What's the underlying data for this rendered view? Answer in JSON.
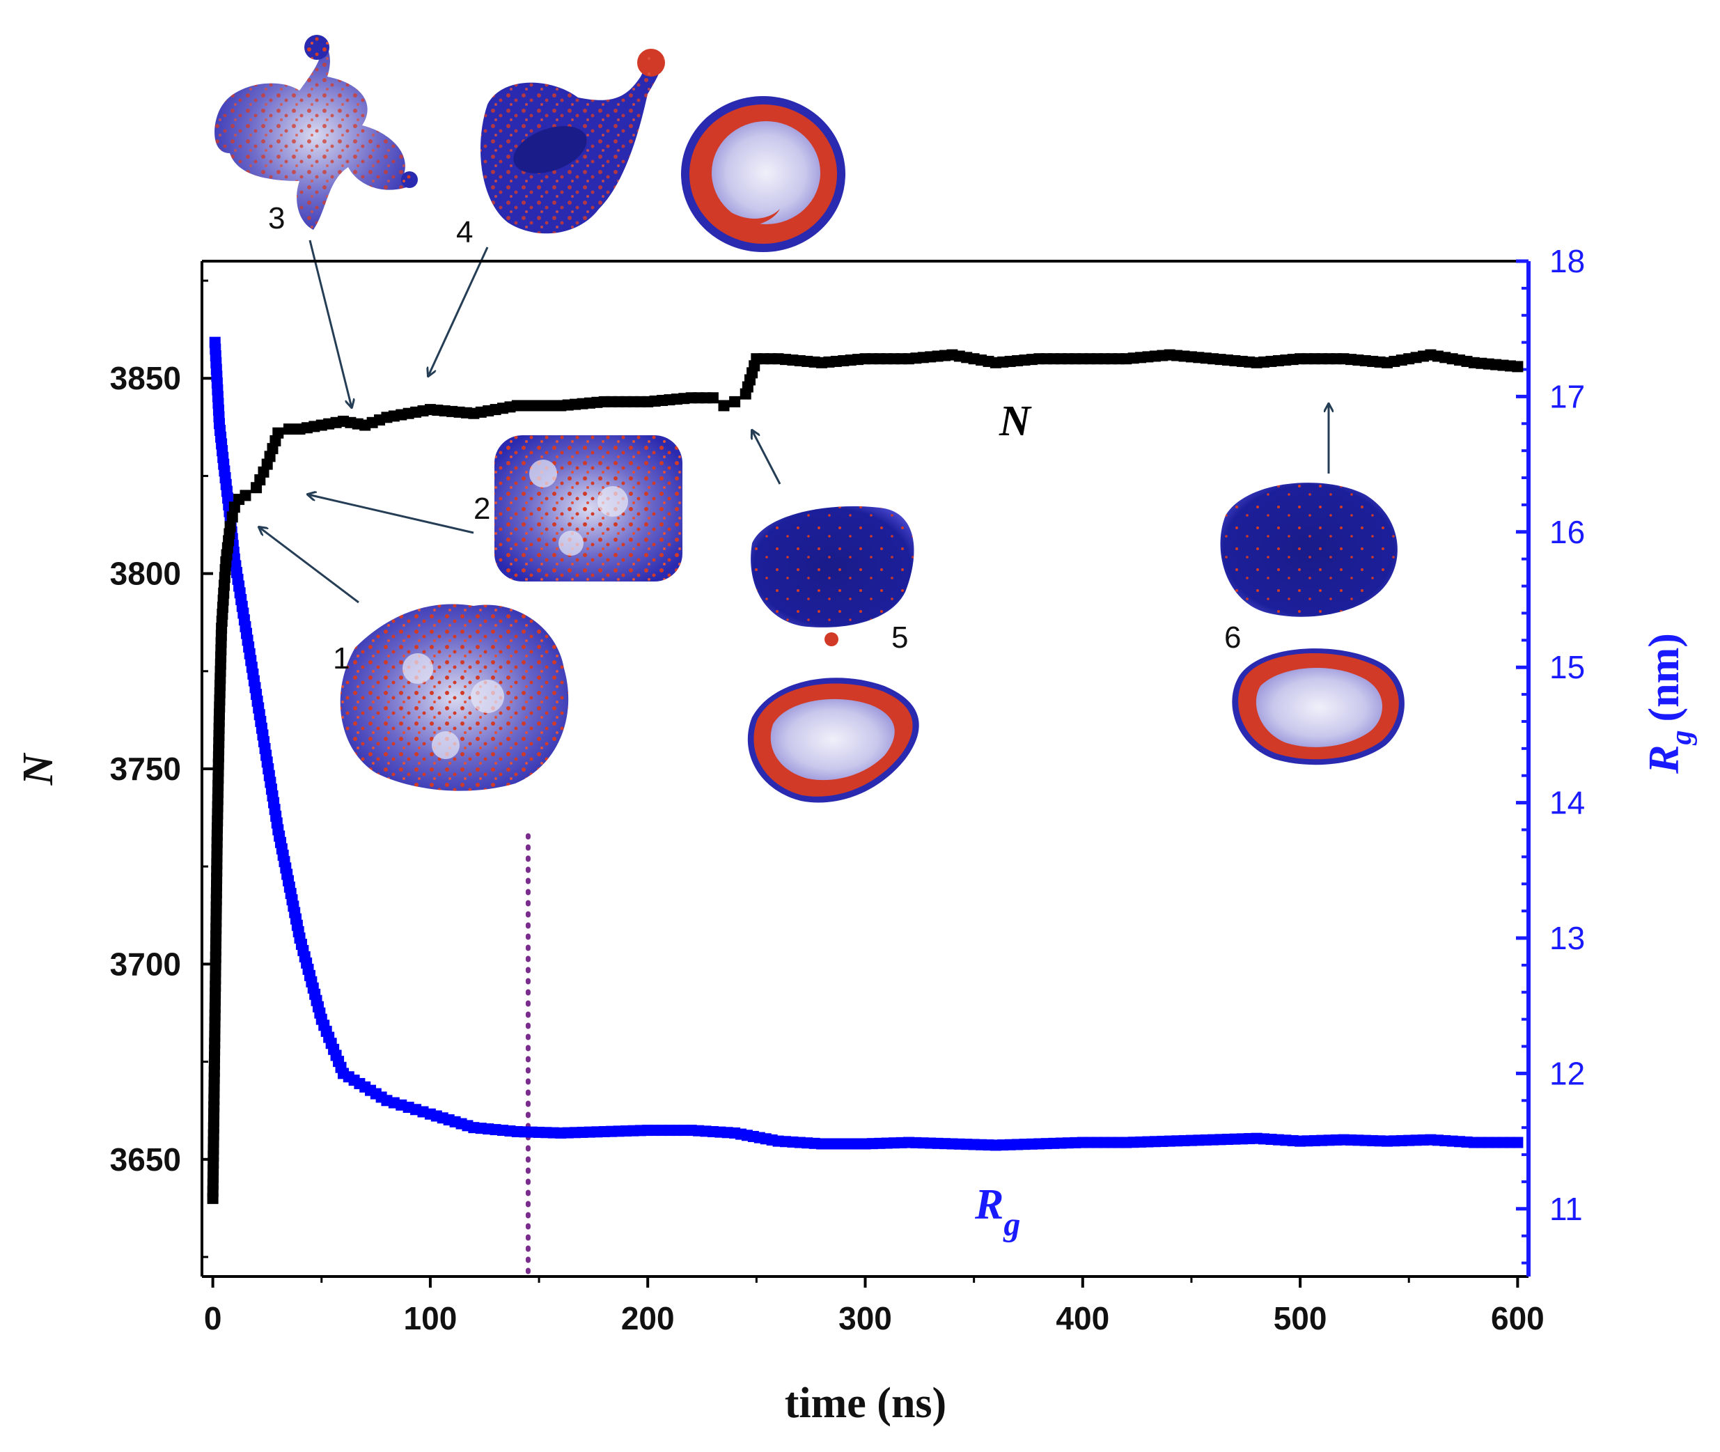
{
  "colors": {
    "n_series": "#000000",
    "rg_series": "#0000ff",
    "right_axis": "#1a1aff",
    "vertical_marker": "#7a2c8c",
    "arrow": "#263e55",
    "snapshot_blue": "#2a2ab0",
    "snapshot_red": "#d23a28"
  },
  "chart_data": {
    "type": "line",
    "xlabel": "time (ns)",
    "ylabel_left": "N",
    "ylabel_right_main": "R",
    "ylabel_right_sub": "g",
    "ylabel_right_unit": "(nm)",
    "xlim": [
      -5,
      605
    ],
    "ylim_left": [
      3620,
      3880
    ],
    "ylim_right": [
      10.5,
      18
    ],
    "x_ticks": [
      0,
      100,
      200,
      300,
      400,
      500,
      600
    ],
    "y_left_ticks": [
      3650,
      3700,
      3750,
      3800,
      3850
    ],
    "y_right_ticks": [
      11,
      12,
      13,
      14,
      15,
      16,
      17,
      18
    ],
    "vertical_marker_x": 145,
    "series": [
      {
        "name": "N",
        "axis": "left",
        "x": [
          0,
          1,
          2,
          3,
          4,
          5,
          6,
          8,
          10,
          12,
          15,
          20,
          25,
          30,
          35,
          40,
          50,
          60,
          70,
          80,
          90,
          100,
          120,
          140,
          160,
          180,
          200,
          220,
          230,
          235,
          240,
          245,
          250,
          260,
          280,
          300,
          320,
          340,
          360,
          380,
          400,
          420,
          440,
          460,
          480,
          500,
          520,
          540,
          560,
          580,
          600
        ],
        "y": [
          3640,
          3687,
          3733,
          3764,
          3786,
          3795,
          3803,
          3812,
          3817,
          3819,
          3820,
          3822,
          3828,
          3836,
          3837,
          3837,
          3838,
          3839,
          3838,
          3840,
          3841,
          3842,
          3841,
          3843,
          3843,
          3844,
          3844,
          3845,
          3845,
          3843,
          3844,
          3846,
          3855,
          3855,
          3854,
          3855,
          3855,
          3856,
          3854,
          3855,
          3855,
          3855,
          3856,
          3855,
          3854,
          3855,
          3855,
          3854,
          3856,
          3854,
          3853
        ]
      },
      {
        "name": "R_g",
        "axis": "right",
        "x": [
          1,
          2,
          3,
          5,
          8,
          10,
          15,
          20,
          25,
          30,
          40,
          50,
          60,
          70,
          80,
          90,
          100,
          120,
          140,
          160,
          180,
          200,
          220,
          240,
          260,
          280,
          300,
          320,
          340,
          360,
          380,
          400,
          420,
          440,
          460,
          480,
          500,
          520,
          540,
          560,
          580,
          600
        ],
        "y": [
          17.4,
          17.1,
          16.8,
          16.5,
          16.1,
          15.8,
          15.3,
          14.8,
          14.3,
          13.8,
          13.0,
          12.4,
          12.0,
          11.9,
          11.8,
          11.75,
          11.7,
          11.6,
          11.57,
          11.56,
          11.57,
          11.58,
          11.58,
          11.56,
          11.5,
          11.48,
          11.48,
          11.49,
          11.48,
          11.47,
          11.48,
          11.49,
          11.49,
          11.5,
          11.51,
          11.52,
          11.5,
          11.51,
          11.5,
          11.51,
          11.49,
          11.49
        ]
      }
    ],
    "annotations": {
      "n_curve_label": "N",
      "rg_curve_label_main": "R",
      "rg_curve_label_sub": "g"
    }
  },
  "snapshots": [
    {
      "label": "1",
      "shape": "porous-cluster"
    },
    {
      "label": "2",
      "shape": "porous-cluster"
    },
    {
      "label": "3",
      "shape": "branched-aggregate"
    },
    {
      "label": "4",
      "shape": "pear-shaped-vesicle"
    },
    {
      "label": "",
      "shape": "vesicle-cross-section"
    },
    {
      "label": "5",
      "shape": "closed-vesicle"
    },
    {
      "label": "",
      "shape": "vesicle-cross-section"
    },
    {
      "label": "6",
      "shape": "closed-vesicle"
    },
    {
      "label": "",
      "shape": "vesicle-cross-section"
    }
  ]
}
